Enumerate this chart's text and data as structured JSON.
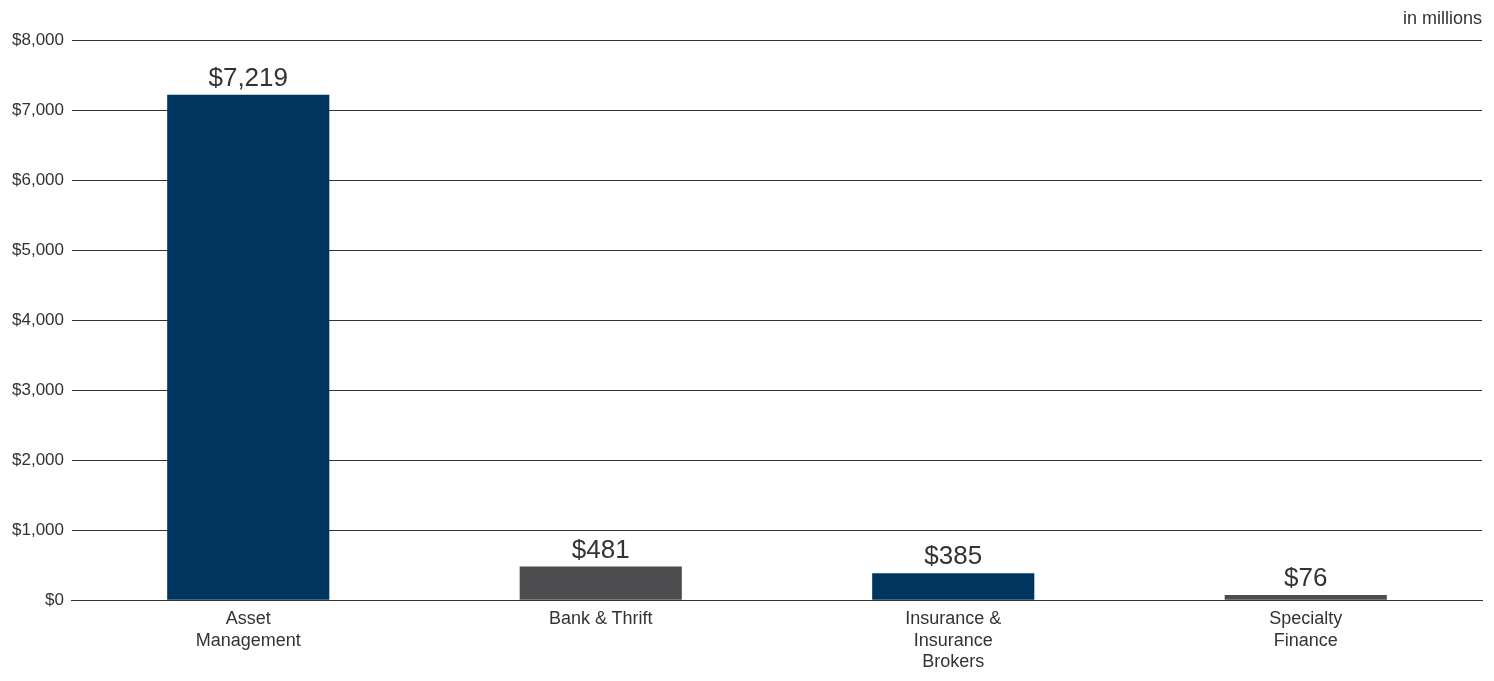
{
  "chart_data": {
    "type": "bar",
    "categories": [
      "Asset Management",
      "Bank & Thrift",
      "Insurance & Insurance Brokers",
      "Specialty Finance"
    ],
    "values": [
      7219,
      481,
      385,
      76
    ],
    "colors": [
      "#003560",
      "#4d4d4f",
      "#003560",
      "#4d4d4f"
    ],
    "value_labels": [
      "$7,219",
      "$481",
      "$385",
      "$76"
    ],
    "ylim": [
      0,
      8000
    ],
    "yticks": [
      {
        "value": 0,
        "label": "$0"
      },
      {
        "value": 1000,
        "label": "$1,000"
      },
      {
        "value": 2000,
        "label": "$2,000"
      },
      {
        "value": 3000,
        "label": "$3,000"
      },
      {
        "value": 4000,
        "label": "$4,000"
      },
      {
        "value": 5000,
        "label": "$5,000"
      },
      {
        "value": 6000,
        "label": "$6,000"
      },
      {
        "value": 7000,
        "label": "$7,000"
      },
      {
        "value": 8000,
        "label": "$8,000"
      }
    ],
    "grid": "y",
    "legend": false,
    "annotations": [
      "in millions"
    ]
  }
}
